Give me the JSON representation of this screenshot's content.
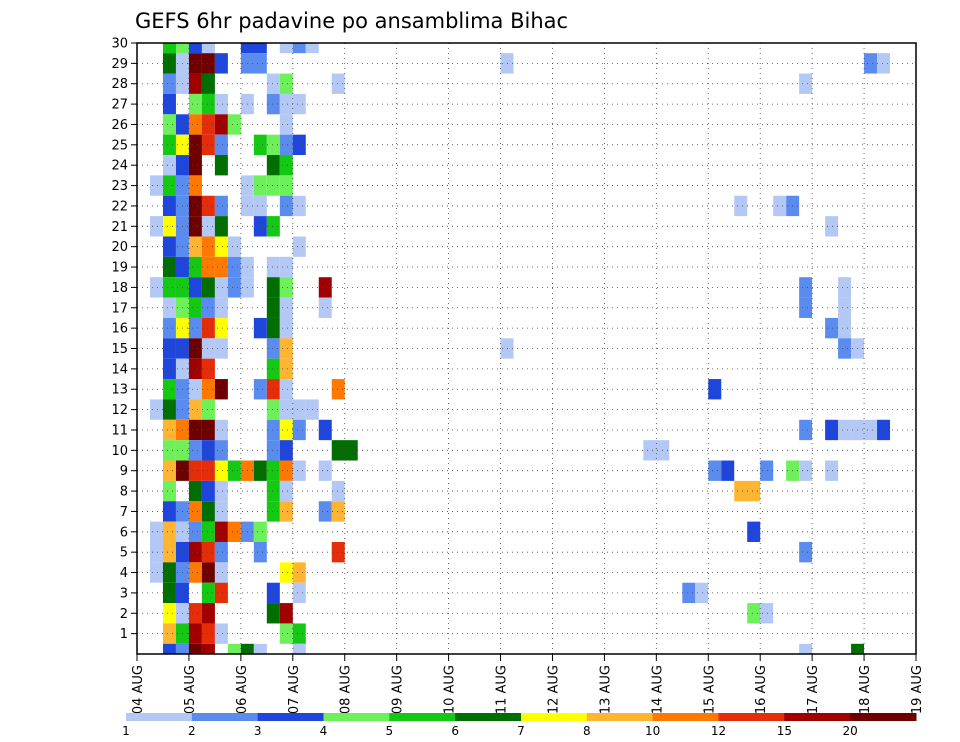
{
  "chart_data": {
    "type": "heatmap",
    "title": "GEFS 6hr padavine po ansamblima Bihac",
    "xlabel": "",
    "ylabel": "",
    "x_tick_labels": [
      "04 AUG",
      "05 AUG",
      "06 AUG",
      "07 AUG",
      "08 AUG",
      "09 AUG",
      "10 AUG",
      "11 AUG",
      "12 AUG",
      "13 AUG",
      "14 AUG",
      "15 AUG",
      "16 AUG",
      "17 AUG",
      "18 AUG",
      "19 AUG"
    ],
    "y_tick_labels": [
      "1",
      "2",
      "3",
      "4",
      "5",
      "6",
      "7",
      "8",
      "9",
      "10",
      "11",
      "12",
      "13",
      "14",
      "15",
      "16",
      "17",
      "18",
      "19",
      "20",
      "21",
      "22",
      "23",
      "24",
      "25",
      "26",
      "27",
      "28",
      "29",
      "30"
    ],
    "x_range_days": [
      0,
      15
    ],
    "y_range": [
      0,
      30
    ],
    "grid": true,
    "legend_position": "bottom",
    "colorbar": {
      "labels": [
        "1",
        "2",
        "3",
        "4",
        "5",
        "6",
        "7",
        "8",
        "10",
        "12",
        "15",
        "20"
      ],
      "colors": [
        "#b4c8f5",
        "#5a8cf0",
        "#1e46dc",
        "#6ef05a",
        "#14c814",
        "#006e00",
        "#ffff00",
        "#ffb432",
        "#ff7800",
        "#e62d0a",
        "#a00000",
        "#6e0000"
      ]
    },
    "cells": [
      [
        0.5,
        30,
        1,
        4
      ],
      [
        0.75,
        30,
        0,
        3
      ],
      [
        1,
        30,
        0,
        2
      ],
      [
        1.25,
        30,
        0,
        0
      ],
      [
        2,
        30,
        1,
        2
      ],
      [
        2.75,
        30,
        0,
        0
      ],
      [
        3,
        30,
        0,
        1
      ],
      [
        3.25,
        30,
        0,
        0
      ],
      [
        0.5,
        29,
        0,
        5
      ],
      [
        0.75,
        29,
        0,
        0
      ],
      [
        1,
        29,
        0,
        11
      ],
      [
        1.25,
        29,
        0,
        11
      ],
      [
        1.5,
        29,
        0,
        2
      ],
      [
        2,
        29,
        1,
        1
      ],
      [
        7,
        29,
        0,
        0
      ],
      [
        14,
        29,
        0,
        1
      ],
      [
        14.25,
        29,
        0,
        0
      ],
      [
        0.5,
        28,
        0,
        1
      ],
      [
        0.75,
        28,
        0,
        0
      ],
      [
        1,
        28,
        0,
        10
      ],
      [
        1.25,
        28,
        0,
        5
      ],
      [
        2.5,
        28,
        0,
        0
      ],
      [
        2.75,
        28,
        0,
        3
      ],
      [
        3.75,
        28,
        0,
        0
      ],
      [
        12.75,
        28,
        0,
        0
      ],
      [
        0.5,
        27,
        0,
        2
      ],
      [
        1,
        27,
        0,
        3
      ],
      [
        1.25,
        27,
        0,
        4
      ],
      [
        1.5,
        27,
        0,
        0
      ],
      [
        2,
        27,
        0,
        0
      ],
      [
        2.5,
        27,
        0,
        1
      ],
      [
        2.75,
        27,
        0,
        0
      ],
      [
        3,
        27,
        0,
        0
      ],
      [
        0.5,
        26,
        0,
        3
      ],
      [
        0.75,
        26,
        0,
        2
      ],
      [
        1,
        26,
        0,
        8
      ],
      [
        1.25,
        26,
        0,
        9
      ],
      [
        1.5,
        26,
        0,
        10
      ],
      [
        1.75,
        26,
        0,
        3
      ],
      [
        2.75,
        26,
        0,
        0
      ],
      [
        0.5,
        25,
        0,
        4
      ],
      [
        0.75,
        25,
        0,
        6
      ],
      [
        1,
        25,
        0,
        11
      ],
      [
        1.25,
        25,
        0,
        9
      ],
      [
        1.5,
        25,
        0,
        1
      ],
      [
        2.25,
        25,
        0,
        4
      ],
      [
        2.5,
        25,
        0,
        3
      ],
      [
        2.75,
        25,
        0,
        1
      ],
      [
        3,
        25,
        0,
        2
      ],
      [
        0.5,
        24,
        0,
        0
      ],
      [
        0.75,
        24,
        0,
        2
      ],
      [
        1,
        24,
        0,
        11
      ],
      [
        1.5,
        24,
        0,
        5
      ],
      [
        2.5,
        24,
        0,
        5
      ],
      [
        2.75,
        24,
        0,
        4
      ],
      [
        0.25,
        23,
        0,
        0
      ],
      [
        0.5,
        23,
        0,
        4
      ],
      [
        0.75,
        23,
        0,
        1
      ],
      [
        1,
        23,
        0,
        8
      ],
      [
        2,
        23,
        0,
        0
      ],
      [
        2.25,
        23,
        0,
        3
      ],
      [
        2.5,
        23,
        0,
        3
      ],
      [
        2.75,
        23,
        0,
        3
      ],
      [
        0.5,
        22,
        0,
        2
      ],
      [
        0.75,
        22,
        0,
        1
      ],
      [
        1,
        22,
        0,
        11
      ],
      [
        1.25,
        22,
        0,
        9
      ],
      [
        1.5,
        22,
        0,
        1
      ],
      [
        2,
        22,
        0,
        0
      ],
      [
        2.25,
        22,
        0,
        0
      ],
      [
        2.75,
        22,
        0,
        1
      ],
      [
        3,
        22,
        0,
        0
      ],
      [
        11.5,
        22,
        0,
        0
      ],
      [
        12.25,
        22,
        0,
        0
      ],
      [
        12.5,
        22,
        0,
        1
      ],
      [
        0.25,
        21,
        0,
        0
      ],
      [
        0.5,
        21,
        0,
        6
      ],
      [
        0.75,
        21,
        0,
        1
      ],
      [
        1,
        21,
        0,
        11
      ],
      [
        1.25,
        21,
        0,
        0
      ],
      [
        1.5,
        21,
        0,
        5
      ],
      [
        2.25,
        21,
        0,
        2
      ],
      [
        2.5,
        21,
        0,
        4
      ],
      [
        13.25,
        21,
        0,
        0
      ],
      [
        0.5,
        20,
        0,
        2
      ],
      [
        0.75,
        20,
        0,
        1
      ],
      [
        1,
        20,
        0,
        7
      ],
      [
        1.25,
        20,
        0,
        8
      ],
      [
        1.5,
        20,
        0,
        6
      ],
      [
        1.75,
        20,
        0,
        0
      ],
      [
        3,
        20,
        0,
        0
      ],
      [
        0.5,
        19,
        0,
        5
      ],
      [
        0.75,
        19,
        0,
        2
      ],
      [
        1,
        19,
        0,
        4
      ],
      [
        1.25,
        19,
        0,
        8
      ],
      [
        1.5,
        19,
        0,
        8
      ],
      [
        1.75,
        19,
        0,
        1
      ],
      [
        2,
        19,
        0,
        0
      ],
      [
        2.5,
        19,
        0,
        0
      ],
      [
        2.75,
        19,
        0,
        0
      ],
      [
        0.25,
        18,
        0,
        0
      ],
      [
        0.5,
        18,
        0,
        4
      ],
      [
        0.75,
        18,
        0,
        4
      ],
      [
        1,
        18,
        0,
        2
      ],
      [
        1.25,
        18,
        0,
        5
      ],
      [
        1.5,
        18,
        0,
        0
      ],
      [
        1.75,
        18,
        0,
        1
      ],
      [
        2,
        18,
        0,
        0
      ],
      [
        2.5,
        18,
        0,
        5
      ],
      [
        2.75,
        18,
        0,
        3
      ],
      [
        3.5,
        18,
        0,
        10
      ],
      [
        12.75,
        18,
        0,
        1
      ],
      [
        13.5,
        18,
        0,
        0
      ],
      [
        0.5,
        17,
        0,
        0
      ],
      [
        0.75,
        17,
        0,
        3
      ],
      [
        1,
        17,
        0,
        4
      ],
      [
        1.25,
        17,
        0,
        1
      ],
      [
        1.5,
        17,
        0,
        0
      ],
      [
        2.5,
        17,
        0,
        5
      ],
      [
        2.75,
        17,
        0,
        0
      ],
      [
        3.5,
        17,
        0,
        0
      ],
      [
        12.75,
        17,
        0,
        1
      ],
      [
        13.5,
        17,
        0,
        0
      ],
      [
        0.5,
        16,
        0,
        1
      ],
      [
        0.75,
        16,
        0,
        6
      ],
      [
        1,
        16,
        0,
        1
      ],
      [
        1.25,
        16,
        0,
        9
      ],
      [
        1.5,
        16,
        0,
        6
      ],
      [
        2.25,
        16,
        0,
        2
      ],
      [
        2.5,
        16,
        0,
        5
      ],
      [
        2.75,
        16,
        0,
        0
      ],
      [
        13.25,
        16,
        0,
        1
      ],
      [
        13.5,
        16,
        0,
        0
      ],
      [
        0.5,
        15,
        0,
        2
      ],
      [
        0.75,
        15,
        0,
        2
      ],
      [
        1,
        15,
        0,
        11
      ],
      [
        1.25,
        15,
        0,
        0
      ],
      [
        1.5,
        15,
        0,
        0
      ],
      [
        2.5,
        15,
        0,
        1
      ],
      [
        2.75,
        15,
        0,
        7
      ],
      [
        7,
        15,
        0,
        0
      ],
      [
        13.5,
        15,
        0,
        1
      ],
      [
        13.75,
        15,
        0,
        0
      ],
      [
        0.5,
        14,
        0,
        2
      ],
      [
        0.75,
        14,
        0,
        0
      ],
      [
        1,
        14,
        0,
        10
      ],
      [
        1.25,
        14,
        0,
        9
      ],
      [
        2.5,
        14,
        0,
        4
      ],
      [
        2.75,
        14,
        0,
        7
      ],
      [
        0.5,
        13,
        0,
        4
      ],
      [
        0.75,
        13,
        0,
        1
      ],
      [
        1,
        13,
        0,
        0
      ],
      [
        1.25,
        13,
        0,
        8
      ],
      [
        1.5,
        13,
        0,
        11
      ],
      [
        2.25,
        13,
        0,
        1
      ],
      [
        2.5,
        13,
        0,
        9
      ],
      [
        2.75,
        13,
        0,
        0
      ],
      [
        3.75,
        13,
        0,
        8
      ],
      [
        11,
        13,
        0,
        2
      ],
      [
        0.25,
        12,
        0,
        0
      ],
      [
        0.5,
        12,
        0,
        5
      ],
      [
        0.75,
        12,
        0,
        1
      ],
      [
        1,
        12,
        0,
        7
      ],
      [
        1.25,
        12,
        0,
        3
      ],
      [
        2.5,
        12,
        0,
        3
      ],
      [
        2.75,
        12,
        0,
        0
      ],
      [
        3,
        12,
        0,
        0
      ],
      [
        3.25,
        12,
        0,
        0
      ],
      [
        0.5,
        11,
        0,
        7
      ],
      [
        0.75,
        11,
        0,
        8
      ],
      [
        1,
        11,
        0,
        11
      ],
      [
        1.25,
        11,
        0,
        11
      ],
      [
        1.5,
        11,
        0,
        0
      ],
      [
        2.5,
        11,
        0,
        1
      ],
      [
        2.75,
        11,
        0,
        6
      ],
      [
        3,
        11,
        0,
        1
      ],
      [
        3.5,
        11,
        0,
        2
      ],
      [
        12.75,
        11,
        0,
        1
      ],
      [
        13.25,
        11,
        0,
        2
      ],
      [
        13.5,
        11,
        0,
        0
      ],
      [
        13.75,
        11,
        0,
        0
      ],
      [
        14,
        11,
        0,
        0
      ],
      [
        14.25,
        11,
        0,
        2
      ],
      [
        0.5,
        10,
        0,
        3
      ],
      [
        0.75,
        10,
        0,
        3
      ],
      [
        1,
        10,
        0,
        1
      ],
      [
        1.25,
        10,
        0,
        2
      ],
      [
        1.5,
        10,
        0,
        1
      ],
      [
        2.5,
        10,
        0,
        1
      ],
      [
        2.75,
        10,
        0,
        2
      ],
      [
        3.75,
        10,
        1,
        5
      ],
      [
        9.75,
        10,
        1,
        0
      ],
      [
        0.5,
        9,
        0,
        7
      ],
      [
        0.75,
        9,
        0,
        11
      ],
      [
        1,
        9,
        0,
        9
      ],
      [
        1.25,
        9,
        0,
        9
      ],
      [
        1.5,
        9,
        0,
        6
      ],
      [
        1.75,
        9,
        0,
        4
      ],
      [
        2,
        9,
        0,
        8
      ],
      [
        2.25,
        9,
        0,
        5
      ],
      [
        2.5,
        9,
        0,
        4
      ],
      [
        2.75,
        9,
        0,
        8
      ],
      [
        3,
        9,
        0,
        0
      ],
      [
        3.5,
        9,
        0,
        0
      ],
      [
        11,
        9,
        0,
        1
      ],
      [
        11.25,
        9,
        0,
        2
      ],
      [
        12,
        9,
        0,
        1
      ],
      [
        12.5,
        9,
        0,
        3
      ],
      [
        12.75,
        9,
        0,
        0
      ],
      [
        13.25,
        9,
        0,
        0
      ],
      [
        0.5,
        8,
        0,
        3
      ],
      [
        1,
        8,
        0,
        5
      ],
      [
        1.25,
        8,
        0,
        2
      ],
      [
        1.5,
        8,
        0,
        0
      ],
      [
        2.5,
        8,
        0,
        4
      ],
      [
        2.75,
        8,
        0,
        0
      ],
      [
        3.75,
        8,
        0,
        0
      ],
      [
        11.5,
        8,
        1,
        7
      ],
      [
        0.5,
        7,
        0,
        2
      ],
      [
        0.75,
        7,
        0,
        1
      ],
      [
        1,
        7,
        0,
        8
      ],
      [
        1.25,
        7,
        0,
        5
      ],
      [
        1.5,
        7,
        0,
        0
      ],
      [
        2.5,
        7,
        0,
        4
      ],
      [
        2.75,
        7,
        0,
        7
      ],
      [
        3.5,
        7,
        0,
        1
      ],
      [
        3.75,
        7,
        0,
        7
      ],
      [
        0.25,
        6,
        0,
        0
      ],
      [
        0.5,
        6,
        0,
        7
      ],
      [
        0.75,
        6,
        0,
        0
      ],
      [
        1,
        6,
        0,
        1
      ],
      [
        1.25,
        6,
        0,
        4
      ],
      [
        1.5,
        6,
        0,
        10
      ],
      [
        1.75,
        6,
        0,
        8
      ],
      [
        2,
        6,
        0,
        1
      ],
      [
        2.25,
        6,
        0,
        3
      ],
      [
        11.75,
        6,
        0,
        2
      ],
      [
        0.25,
        5,
        0,
        0
      ],
      [
        0.5,
        5,
        0,
        7
      ],
      [
        0.75,
        5,
        0,
        2
      ],
      [
        1,
        5,
        0,
        10
      ],
      [
        1.25,
        5,
        0,
        9
      ],
      [
        1.5,
        5,
        0,
        1
      ],
      [
        2.25,
        5,
        0,
        1
      ],
      [
        3.75,
        5,
        0,
        9
      ],
      [
        12.75,
        5,
        0,
        1
      ],
      [
        0.25,
        4,
        0,
        0
      ],
      [
        0.5,
        4,
        0,
        5
      ],
      [
        0.75,
        4,
        0,
        1
      ],
      [
        1,
        4,
        0,
        8
      ],
      [
        1.25,
        4,
        0,
        11
      ],
      [
        1.5,
        4,
        0,
        0
      ],
      [
        2.75,
        4,
        0,
        6
      ],
      [
        3,
        4,
        0,
        7
      ],
      [
        0.5,
        3,
        0,
        5
      ],
      [
        0.75,
        3,
        0,
        2
      ],
      [
        1.25,
        3,
        0,
        4
      ],
      [
        1.5,
        3,
        0,
        9
      ],
      [
        2.5,
        3,
        0,
        2
      ],
      [
        3,
        3,
        0,
        0
      ],
      [
        10.5,
        3,
        0,
        1
      ],
      [
        10.75,
        3,
        0,
        0
      ],
      [
        0.5,
        2,
        0,
        6
      ],
      [
        0.75,
        2,
        0,
        0
      ],
      [
        1,
        2,
        0,
        9
      ],
      [
        1.25,
        2,
        0,
        10
      ],
      [
        2.5,
        2,
        0,
        5
      ],
      [
        2.75,
        2,
        0,
        10
      ],
      [
        11.75,
        2,
        0,
        3
      ],
      [
        12,
        2,
        0,
        0
      ],
      [
        0.5,
        1,
        0,
        7
      ],
      [
        0.75,
        1,
        0,
        4
      ],
      [
        1,
        1,
        0,
        10
      ],
      [
        1.25,
        1,
        0,
        9
      ],
      [
        1.5,
        1,
        0,
        0
      ],
      [
        2.75,
        1,
        0,
        3
      ],
      [
        3,
        1,
        0,
        4
      ],
      [
        0.5,
        0,
        0,
        2
      ],
      [
        0.75,
        0,
        0,
        1
      ],
      [
        1,
        0,
        0,
        11
      ],
      [
        1.25,
        0,
        0,
        10
      ],
      [
        1.75,
        0,
        0,
        3
      ],
      [
        2,
        0,
        0,
        5
      ],
      [
        2.25,
        0,
        0,
        0
      ],
      [
        3,
        0,
        0,
        0
      ],
      [
        12.75,
        0,
        0,
        0
      ],
      [
        13.75,
        0,
        0,
        5
      ]
    ]
  }
}
